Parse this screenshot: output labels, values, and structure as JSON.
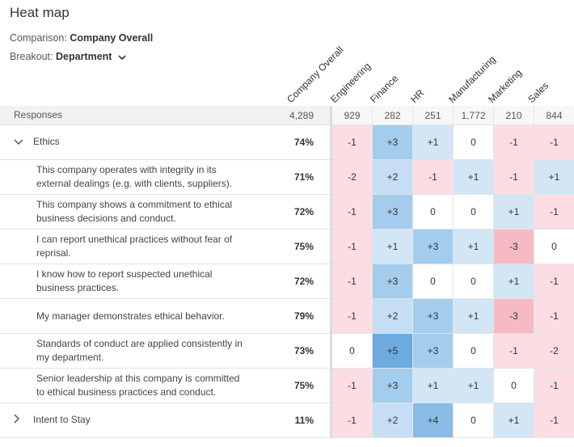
{
  "title": "Heat map",
  "comparison": {
    "label": "Comparison:",
    "value": "Company Overall"
  },
  "breakout": {
    "label": "Breakout:",
    "value": "Department"
  },
  "columns": [
    "Company Overall",
    "Engineering",
    "Finance",
    "HR",
    "Manufacturing",
    "Marketing",
    "Sales"
  ],
  "responses": {
    "label": "Responses",
    "overall": "4,289",
    "values": [
      "929",
      "282",
      "251",
      "1,772",
      "210",
      "844"
    ]
  },
  "rows": [
    {
      "label": "Ethics",
      "group": true,
      "expanded": true,
      "overall": "74%",
      "values": [
        -1,
        3,
        1,
        0,
        -1,
        -1
      ]
    },
    {
      "label": "This company operates with integrity in its external dealings (e.g. with clients, suppliers).",
      "overall": "71%",
      "values": [
        -2,
        2,
        -1,
        1,
        -1,
        1
      ]
    },
    {
      "label": "This company shows a commitment to ethical business decisions and conduct.",
      "overall": "72%",
      "values": [
        -1,
        3,
        0,
        0,
        1,
        -1
      ]
    },
    {
      "label": "I can report unethical practices without fear of reprisal.",
      "overall": "75%",
      "values": [
        -1,
        1,
        3,
        1,
        -3,
        0
      ]
    },
    {
      "label": "I know how to report suspected unethical business practices.",
      "overall": "72%",
      "values": [
        -1,
        3,
        0,
        0,
        1,
        -1
      ]
    },
    {
      "label": "My manager demonstrates ethical behavior.",
      "overall": "79%",
      "values": [
        -1,
        2,
        3,
        1,
        -3,
        -1
      ]
    },
    {
      "label": "Standards of conduct are applied consistently in my department.",
      "overall": "73%",
      "values": [
        0,
        5,
        3,
        0,
        -1,
        -2
      ]
    },
    {
      "label": "Senior leadership at this company is committed to ethical business practices and conduct.",
      "overall": "75%",
      "values": [
        -1,
        3,
        1,
        1,
        0,
        -1
      ]
    },
    {
      "label": "Intent to Stay",
      "group": true,
      "expanded": false,
      "overall": "11%",
      "values": [
        -1,
        2,
        4,
        0,
        1,
        -1
      ]
    }
  ],
  "colors": {
    "neg1": "#fbdde3",
    "neg3": "#f7b9c3",
    "pos1": "#d3e6f6",
    "pos2": "#c6def3",
    "pos3": "#a4ccec",
    "pos4": "#88bce6",
    "pos5": "#6daae0",
    "zero": "#ffffff"
  }
}
